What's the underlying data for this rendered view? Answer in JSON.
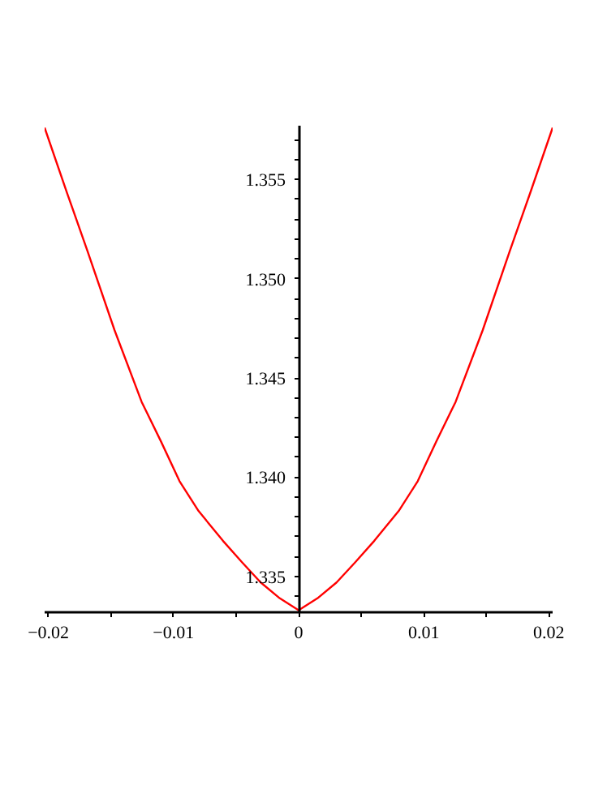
{
  "chart_data": {
    "type": "line",
    "grid": false,
    "marker": "none",
    "line_style": "solid",
    "x": [
      -0.0203,
      -0.0185,
      -0.01688,
      -0.01471,
      -0.01255,
      -0.011,
      -0.00952,
      -0.008,
      -0.00605,
      -0.0045,
      -0.00303,
      -0.0015,
      0,
      0.0015,
      0.00303,
      0.0045,
      0.00605,
      0.008,
      0.00952,
      0.011,
      0.01255,
      0.01471,
      0.01688,
      0.0185,
      0.0203
    ],
    "series": [
      {
        "color": "#ff0000",
        "values": [
          1.3576,
          1.3543,
          1.3514,
          1.3474,
          1.3438,
          1.3418,
          1.3398,
          1.3383,
          1.3368,
          1.3357,
          1.3347,
          1.3339,
          1.3333,
          1.3339,
          1.3347,
          1.3357,
          1.3368,
          1.3383,
          1.3398,
          1.3418,
          1.3438,
          1.3474,
          1.3514,
          1.3543,
          1.3576
        ]
      }
    ],
    "xlim": [
      -0.0203,
      0.0203
    ],
    "ylim": [
      1.3332,
      1.3577
    ],
    "xticks": [
      {
        "value": -0.02,
        "label": "−0.02"
      },
      {
        "value": -0.015,
        "label": null
      },
      {
        "value": -0.01,
        "label": "−0.01"
      },
      {
        "value": -0.005,
        "label": null
      },
      0,
      {
        "value": 0.005,
        "label": null
      },
      0.01,
      {
        "value": 0.015,
        "label": null
      },
      0.02
    ],
    "yticks": [
      {
        "value": 1.334,
        "label": null
      },
      1.335,
      {
        "value": 1.336,
        "label": null
      },
      {
        "value": 1.337,
        "label": null
      },
      {
        "value": 1.338,
        "label": null
      },
      {
        "value": 1.339,
        "label": null
      },
      {
        "value": 1.34,
        "label": "1.340"
      },
      {
        "value": 1.341,
        "label": null
      },
      {
        "value": 1.342,
        "label": null
      },
      {
        "value": 1.343,
        "label": null
      },
      {
        "value": 1.344,
        "label": null
      },
      1.345,
      {
        "value": 1.346,
        "label": null
      },
      {
        "value": 1.347,
        "label": null
      },
      {
        "value": 1.348,
        "label": null
      },
      {
        "value": 1.349,
        "label": null
      },
      {
        "value": 1.35,
        "label": "1.350"
      },
      {
        "value": 1.351,
        "label": null
      },
      {
        "value": 1.352,
        "label": null
      },
      {
        "value": 1.353,
        "label": null
      },
      {
        "value": 1.354,
        "label": null
      },
      1.355,
      {
        "value": 1.356,
        "label": null
      },
      {
        "value": 1.357,
        "label": null
      }
    ]
  }
}
